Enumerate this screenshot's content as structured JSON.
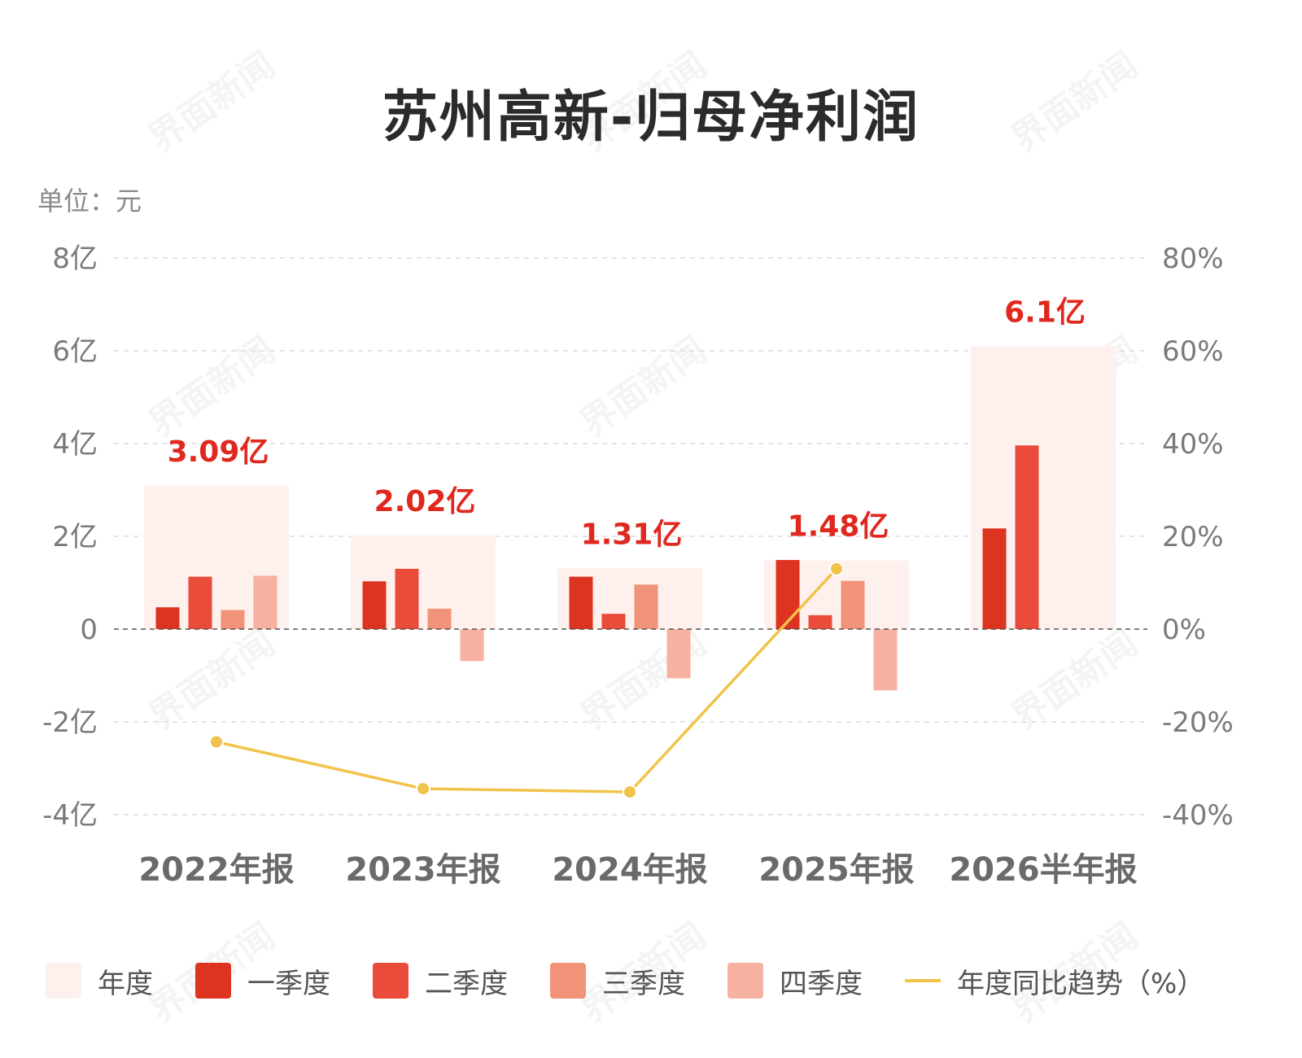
{
  "title": "苏州高新-归母净利润",
  "unit_label": "单位：元",
  "watermark": "界面新闻",
  "chart_data": {
    "type": "bar",
    "categories": [
      "2022年报",
      "2023年报",
      "2024年报",
      "2025年报",
      "2026半年报"
    ],
    "y_ticks": [
      "8亿",
      "6亿",
      "4亿",
      "2亿",
      "0",
      "-2亿",
      "-4亿"
    ],
    "y2_ticks": [
      "80%",
      "60%",
      "40%",
      "20%",
      "0%",
      "-20%",
      "-40%"
    ],
    "ylim": [
      -4,
      8
    ],
    "y_unit": "亿元",
    "y2lim": [
      -40,
      80
    ],
    "annual": [
      3.09,
      2.02,
      1.31,
      1.48,
      6.1
    ],
    "annual_labels": [
      "3.09亿",
      "2.02亿",
      "1.31亿",
      "1.48亿",
      "6.1亿"
    ],
    "series": [
      {
        "name": "一季度",
        "values": [
          0.47,
          1.03,
          1.13,
          1.49,
          2.17
        ],
        "color": "#dd3421"
      },
      {
        "name": "二季度",
        "values": [
          1.13,
          1.3,
          0.33,
          0.3,
          3.96
        ],
        "color": "#ea4c3c"
      },
      {
        "name": "三季度",
        "values": [
          0.41,
          0.44,
          0.96,
          1.04,
          null
        ],
        "color": "#f09379"
      },
      {
        "name": "四季度",
        "values": [
          1.15,
          -0.69,
          -1.06,
          -1.32,
          null
        ],
        "color": "#f7b1a1"
      }
    ],
    "line": {
      "name": "年度同比趋势（%）",
      "values": [
        -24.3,
        -34.4,
        -35.1,
        13.0,
        null
      ],
      "color": "#f2c34a"
    },
    "grid": true,
    "legend_position": "bottom"
  },
  "legend": [
    {
      "label": "年度",
      "color": "#fef0ec",
      "kind": "box"
    },
    {
      "label": "一季度",
      "color": "#dd3421",
      "kind": "box"
    },
    {
      "label": "二季度",
      "color": "#ea4c3c",
      "kind": "box"
    },
    {
      "label": "三季度",
      "color": "#f09379",
      "kind": "box"
    },
    {
      "label": "四季度",
      "color": "#f7b1a1",
      "kind": "box"
    },
    {
      "label": "年度同比趋势（%）",
      "color": "#f2c34a",
      "kind": "line"
    }
  ]
}
